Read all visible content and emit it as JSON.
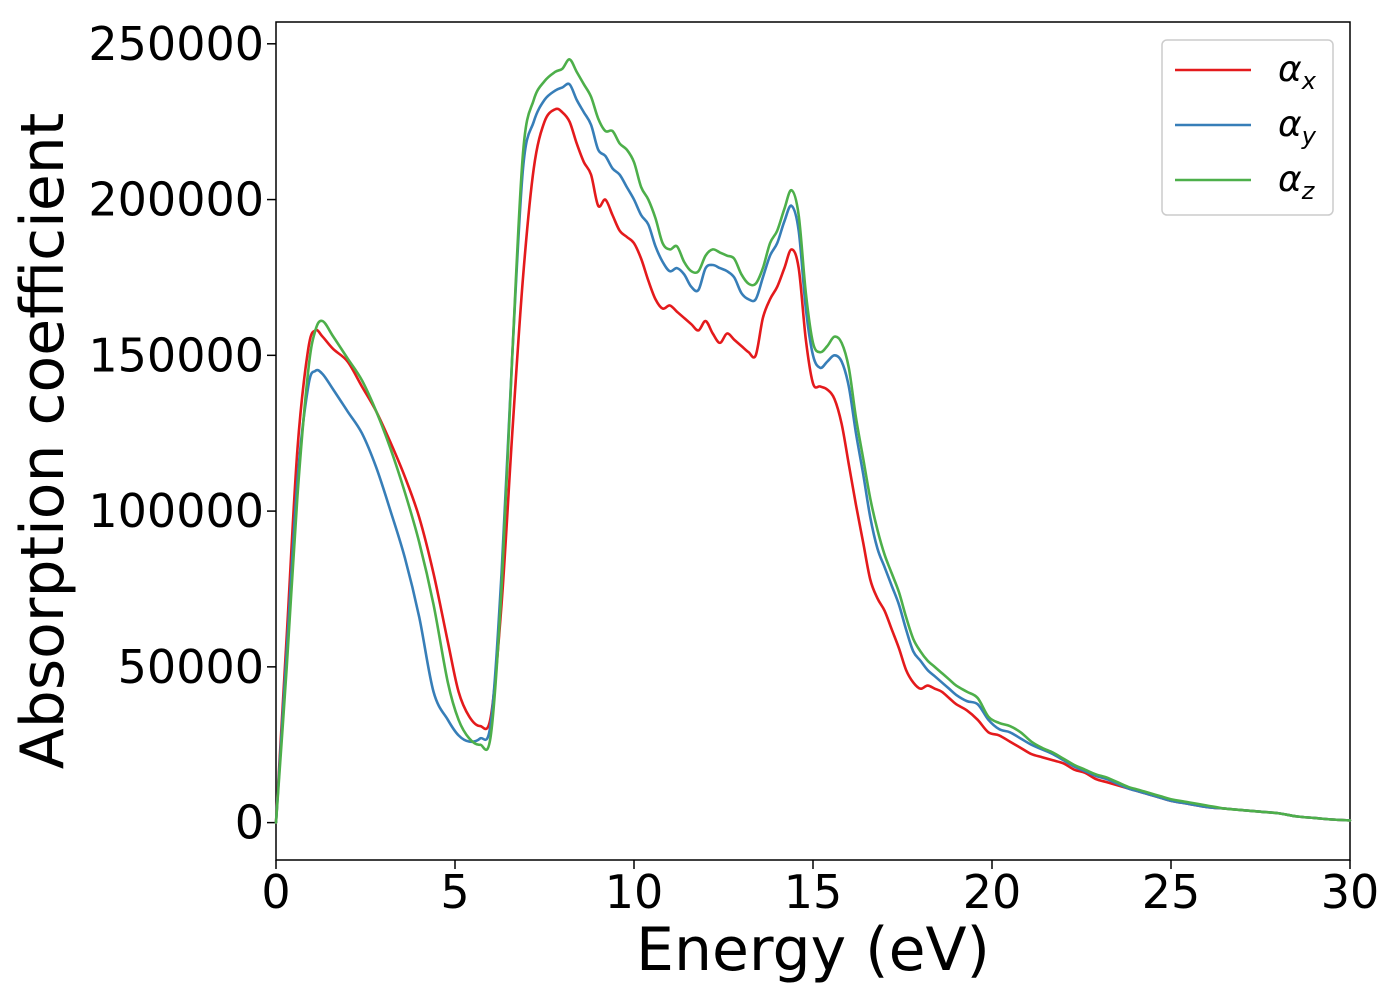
{
  "chart_data": {
    "type": "line",
    "title": "",
    "xlabel": "Energy (eV)",
    "ylabel": "Absorption coefficient",
    "xlim": [
      0,
      30
    ],
    "ylim": [
      -12000,
      257000
    ],
    "xticks": [
      0,
      5,
      10,
      15,
      20,
      25,
      30
    ],
    "yticks": [
      0,
      50000,
      100000,
      150000,
      200000,
      250000
    ],
    "xtick_labels": [
      "0",
      "5",
      "10",
      "15",
      "20",
      "25",
      "30"
    ],
    "ytick_labels": [
      "0",
      "50000",
      "100000",
      "150000",
      "200000",
      "250000"
    ],
    "grid": false,
    "legend_position": "top-right",
    "series": [
      {
        "name": "α_x",
        "symbol": "α",
        "subscript": "x",
        "color": "#e41a1c",
        "x": [
          0,
          0.3,
          0.6,
          0.9,
          1.1,
          1.3,
          1.6,
          2.0,
          2.4,
          2.8,
          3.2,
          3.6,
          4.0,
          4.4,
          4.8,
          5.1,
          5.4,
          5.7,
          6.0,
          6.3,
          6.6,
          6.9,
          7.2,
          7.5,
          7.8,
          8.0,
          8.2,
          8.4,
          8.6,
          8.8,
          9.0,
          9.2,
          9.4,
          9.6,
          9.8,
          10.0,
          10.2,
          10.4,
          10.6,
          10.8,
          11.0,
          11.2,
          11.4,
          11.6,
          11.8,
          12.0,
          12.2,
          12.4,
          12.6,
          12.8,
          13.0,
          13.2,
          13.4,
          13.6,
          13.8,
          14.0,
          14.2,
          14.4,
          14.6,
          14.8,
          15.0,
          15.2,
          15.4,
          15.6,
          15.8,
          16.0,
          16.2,
          16.4,
          16.6,
          16.8,
          17.0,
          17.2,
          17.4,
          17.6,
          17.8,
          18.0,
          18.2,
          18.4,
          18.6,
          18.8,
          19.0,
          19.3,
          19.6,
          19.9,
          20.2,
          20.5,
          20.8,
          21.1,
          21.4,
          21.7,
          22.0,
          22.3,
          22.6,
          22.9,
          23.2,
          23.5,
          23.8,
          24.1,
          24.4,
          24.7,
          25.0,
          25.5,
          26.0,
          26.5,
          27.0,
          27.5,
          28.0,
          28.5,
          29.0,
          29.5,
          30.0
        ],
        "y": [
          0,
          60000,
          120000,
          152000,
          158000,
          156000,
          152000,
          148000,
          140000,
          132000,
          122000,
          111000,
          98000,
          80000,
          58000,
          42000,
          34000,
          31000,
          34000,
          70000,
          125000,
          175000,
          210000,
          225000,
          229000,
          228000,
          225000,
          218000,
          212000,
          208000,
          198000,
          200000,
          195000,
          190000,
          188000,
          186000,
          181000,
          174000,
          168000,
          165000,
          166000,
          164000,
          162000,
          160000,
          158000,
          161000,
          157000,
          154000,
          157000,
          155000,
          153000,
          151000,
          150000,
          162000,
          168000,
          172000,
          178000,
          184000,
          178000,
          155000,
          141000,
          140000,
          139000,
          136000,
          128000,
          115000,
          102000,
          90000,
          78000,
          72000,
          68000,
          62000,
          56000,
          49000,
          45000,
          43000,
          44000,
          43000,
          42000,
          40000,
          38000,
          36000,
          33000,
          29000,
          28000,
          26000,
          24000,
          22000,
          21000,
          20000,
          19000,
          17000,
          16000,
          14000,
          13000,
          12000,
          11000,
          10000,
          9000,
          8000,
          7000,
          6000,
          5000,
          4500,
          4000,
          3500,
          3000,
          2000,
          1500,
          1000,
          700
        ]
      },
      {
        "name": "α_y",
        "symbol": "α",
        "subscript": "y",
        "color": "#377eb8",
        "x": [
          0,
          0.3,
          0.6,
          0.9,
          1.1,
          1.3,
          1.6,
          2.0,
          2.4,
          2.8,
          3.2,
          3.6,
          4.0,
          4.4,
          4.8,
          5.1,
          5.4,
          5.7,
          6.0,
          6.3,
          6.6,
          6.9,
          7.2,
          7.5,
          7.8,
          8.0,
          8.2,
          8.4,
          8.6,
          8.8,
          9.0,
          9.2,
          9.4,
          9.6,
          9.8,
          10.0,
          10.2,
          10.4,
          10.6,
          10.8,
          11.0,
          11.2,
          11.4,
          11.6,
          11.8,
          12.0,
          12.2,
          12.4,
          12.6,
          12.8,
          13.0,
          13.2,
          13.4,
          13.6,
          13.8,
          14.0,
          14.2,
          14.4,
          14.6,
          14.8,
          15.0,
          15.2,
          15.4,
          15.6,
          15.8,
          16.0,
          16.2,
          16.4,
          16.6,
          16.8,
          17.0,
          17.2,
          17.4,
          17.6,
          17.8,
          18.0,
          18.2,
          18.4,
          18.6,
          18.8,
          19.0,
          19.3,
          19.6,
          19.9,
          20.2,
          20.5,
          20.8,
          21.1,
          21.4,
          21.7,
          22.0,
          22.3,
          22.6,
          22.9,
          23.2,
          23.5,
          23.8,
          24.1,
          24.4,
          24.7,
          25.0,
          25.5,
          26.0,
          26.5,
          27.0,
          27.5,
          28.0,
          28.5,
          29.0,
          29.5,
          30.0
        ],
        "y": [
          0,
          55000,
          110000,
          140000,
          145000,
          144000,
          139000,
          132000,
          125000,
          114000,
          100000,
          85000,
          66000,
          42000,
          33000,
          28000,
          26000,
          27000,
          32000,
          80000,
          150000,
          210000,
          225000,
          232000,
          235000,
          236000,
          237000,
          232000,
          228000,
          224000,
          216000,
          214000,
          210000,
          208000,
          204000,
          200000,
          195000,
          192000,
          185000,
          180000,
          177000,
          178000,
          176000,
          172000,
          171000,
          178000,
          179000,
          178000,
          177000,
          175000,
          170000,
          168000,
          168000,
          175000,
          182000,
          186000,
          193000,
          198000,
          190000,
          165000,
          150000,
          146000,
          148000,
          150000,
          148000,
          140000,
          125000,
          112000,
          98000,
          88000,
          82000,
          76000,
          70000,
          62000,
          55000,
          52000,
          49000,
          47000,
          45000,
          43000,
          41000,
          39000,
          38000,
          33000,
          30000,
          29000,
          27000,
          25000,
          23500,
          22000,
          20000,
          18000,
          16500,
          15000,
          14000,
          12500,
          11000,
          10000,
          9000,
          8000,
          7000,
          6000,
          5000,
          4500,
          4000,
          3500,
          3000,
          2000,
          1500,
          1000,
          700
        ]
      },
      {
        "name": "α_z",
        "symbol": "α",
        "subscript": "z",
        "color": "#4daf4a",
        "x": [
          0,
          0.3,
          0.6,
          0.9,
          1.1,
          1.3,
          1.6,
          2.0,
          2.4,
          2.8,
          3.2,
          3.6,
          4.0,
          4.4,
          4.8,
          5.1,
          5.4,
          5.7,
          6.0,
          6.3,
          6.6,
          6.9,
          7.2,
          7.5,
          7.8,
          8.0,
          8.2,
          8.4,
          8.6,
          8.8,
          9.0,
          9.2,
          9.4,
          9.6,
          9.8,
          10.0,
          10.2,
          10.4,
          10.6,
          10.8,
          11.0,
          11.2,
          11.4,
          11.6,
          11.8,
          12.0,
          12.2,
          12.4,
          12.6,
          12.8,
          13.0,
          13.2,
          13.4,
          13.6,
          13.8,
          14.0,
          14.2,
          14.4,
          14.6,
          14.8,
          15.0,
          15.2,
          15.4,
          15.6,
          15.8,
          16.0,
          16.2,
          16.4,
          16.6,
          16.8,
          17.0,
          17.2,
          17.4,
          17.6,
          17.8,
          18.0,
          18.2,
          18.4,
          18.6,
          18.8,
          19.0,
          19.3,
          19.6,
          19.9,
          20.2,
          20.5,
          20.8,
          21.1,
          21.4,
          21.7,
          22.0,
          22.3,
          22.6,
          22.9,
          23.2,
          23.5,
          23.8,
          24.1,
          24.4,
          24.7,
          25.0,
          25.5,
          26.0,
          26.5,
          27.0,
          27.5,
          28.0,
          28.5,
          29.0,
          29.5,
          30.0
        ],
        "y": [
          0,
          50000,
          105000,
          145000,
          158000,
          161000,
          156000,
          149000,
          142000,
          132000,
          120000,
          106000,
          90000,
          70000,
          45000,
          33000,
          27000,
          25000,
          28000,
          75000,
          150000,
          215000,
          232000,
          238000,
          241000,
          242000,
          245000,
          241000,
          237000,
          233000,
          226000,
          222000,
          222000,
          218000,
          216000,
          212000,
          204000,
          200000,
          194000,
          186000,
          184000,
          185000,
          180000,
          177000,
          177000,
          182000,
          184000,
          183000,
          182000,
          181000,
          176000,
          173000,
          173000,
          178000,
          186000,
          190000,
          197000,
          203000,
          195000,
          170000,
          154000,
          151000,
          153000,
          156000,
          154000,
          146000,
          130000,
          117000,
          104000,
          94000,
          86000,
          80000,
          74000,
          66000,
          59000,
          55000,
          52000,
          50000,
          48000,
          46000,
          44000,
          42000,
          40000,
          34000,
          32000,
          31000,
          29000,
          26000,
          24000,
          22500,
          20500,
          18500,
          17000,
          15500,
          14500,
          13000,
          11500,
          10500,
          9500,
          8500,
          7500,
          6500,
          5500,
          4500,
          4000,
          3500,
          3000,
          2000,
          1500,
          1000,
          700
        ]
      }
    ]
  }
}
